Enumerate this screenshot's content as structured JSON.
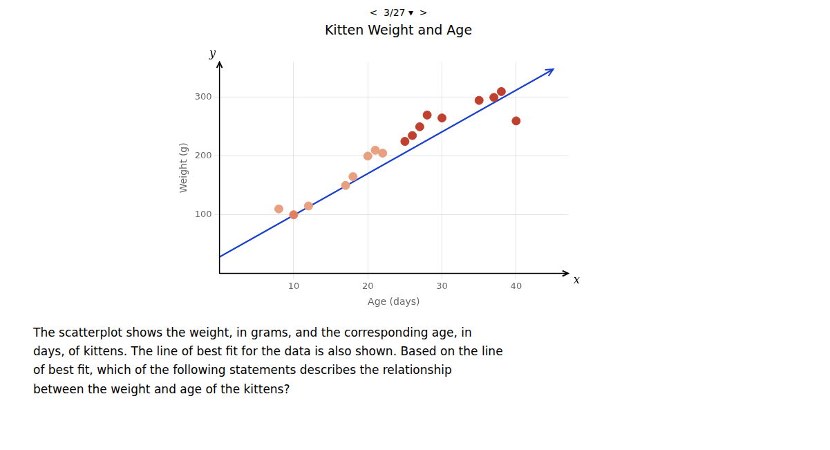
{
  "chart_data": {
    "type": "scatter",
    "nav_text": "<  3/27 ▾  >",
    "title": "Kitten Weight and Age",
    "xlabel": "Age (days)",
    "ylabel": "Weight (g)",
    "x_tip_label": "x",
    "y_tip_label": "y",
    "description": "The scatterplot shows the weight, in grams, and the corresponding age, in\ndays, of kittens. The line of best fit for the data is also shown. Based on the line\nof best fit, which of the following statements describes the relationship\nbetween the weight and age of the kittens?",
    "x": [
      8,
      10,
      12,
      17,
      18,
      20,
      21,
      22,
      25,
      26,
      27,
      28,
      30,
      35,
      37,
      38,
      40
    ],
    "values": [
      110,
      100,
      115,
      150,
      165,
      200,
      210,
      205,
      225,
      235,
      250,
      270,
      265,
      295,
      300,
      310,
      260
    ],
    "colors": [
      "#E8A080",
      "#E08060",
      "#E8A080",
      "#E8A080",
      "#E8A080",
      "#E8A080",
      "#E8A080",
      "#E8A080",
      "#C04030",
      "#C04030",
      "#C04030",
      "#C04030",
      "#C04030",
      "#C04030",
      "#C04030",
      "#C04030",
      "#C04030"
    ],
    "fit_line": {
      "x": [
        0,
        45
      ],
      "values": [
        28,
        348
      ],
      "color": "#1a3fcc"
    },
    "xlim": [
      0,
      47
    ],
    "ylim": [
      0,
      360
    ],
    "xticks": [
      10,
      20,
      30,
      40
    ],
    "yticks": [
      100,
      200,
      300
    ],
    "grid": true
  }
}
